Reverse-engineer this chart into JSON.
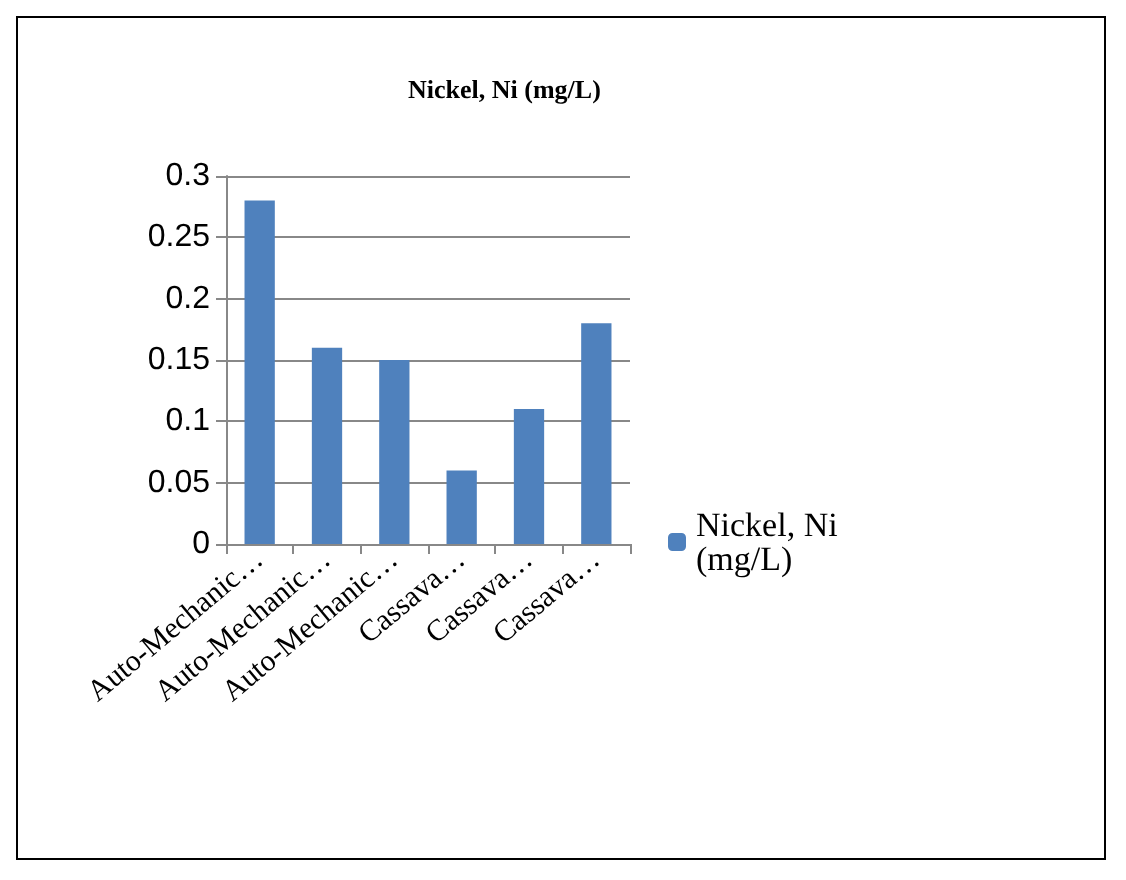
{
  "chart_data": {
    "type": "bar",
    "title": "Nickel, Ni (mg/L)",
    "categories": [
      "Auto-Mechanic…",
      "Auto-Mechanic…",
      "Auto-Mechanic…",
      "Cassava…",
      "Cassava…",
      "Cassava…"
    ],
    "series": [
      {
        "name": "Nickel, Ni (mg/L)",
        "color": "#4f81bd",
        "values": [
          0.28,
          0.16,
          0.15,
          0.06,
          0.11,
          0.18
        ]
      }
    ],
    "ylim": [
      0,
      0.3
    ],
    "yticks": [
      0,
      0.05,
      0.1,
      0.15,
      0.2,
      0.25,
      0.3
    ],
    "grid": "y",
    "legend": "right"
  }
}
